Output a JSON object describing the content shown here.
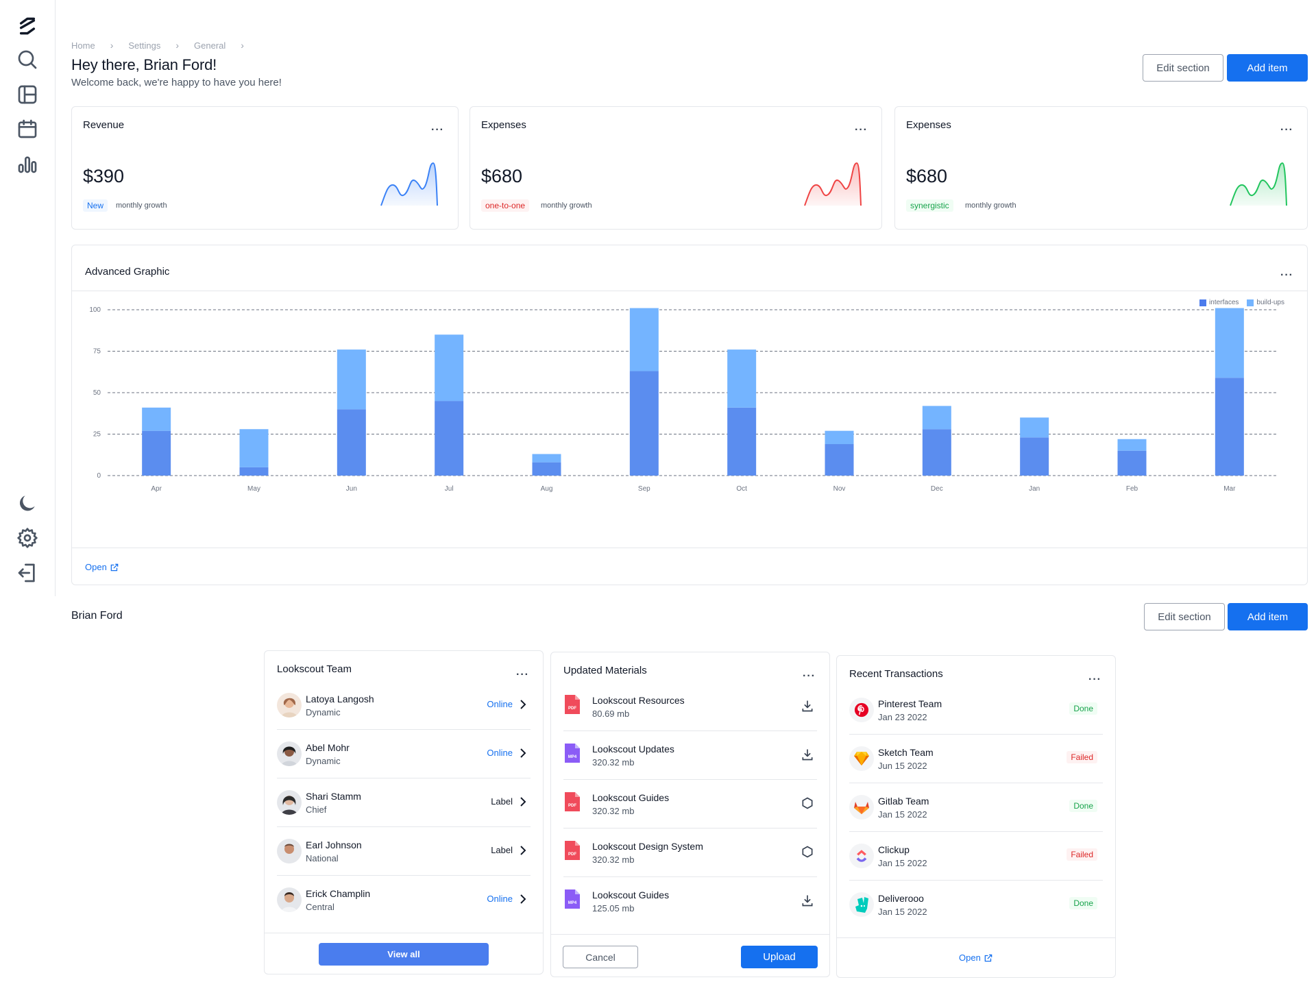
{
  "breadcrumb": [
    "Home",
    "Settings",
    "General"
  ],
  "header": {
    "title": "Hey there, Brian Ford!",
    "subtitle": "Welcome back, we're happy to have you here!",
    "edit_label": "Edit section",
    "add_label": "Add item"
  },
  "stats": [
    {
      "title": "Revenue",
      "value": "$390",
      "badge": "New",
      "badge_color": "#1570ef",
      "badge_bg": "#eff6ff",
      "growth": "monthly growth",
      "spark_color": "#3b82f6"
    },
    {
      "title": "Expenses",
      "value": "$680",
      "badge": "one-to-one",
      "badge_color": "#dc2626",
      "badge_bg": "#fef2f2",
      "growth": "monthly growth",
      "spark_color": "#ef4444"
    },
    {
      "title": "Expenses",
      "value": "$680",
      "badge": "synergistic",
      "badge_color": "#16a34a",
      "badge_bg": "#f0fdf4",
      "growth": "monthly growth",
      "spark_color": "#22c55e"
    }
  ],
  "advanced": {
    "title": "Advanced Graphic",
    "open_label": "Open"
  },
  "chart_data": {
    "type": "bar",
    "stacked": true,
    "categories": [
      "Apr",
      "May",
      "Jun",
      "Jul",
      "Aug",
      "Sep",
      "Oct",
      "Nov",
      "Dec",
      "Jan",
      "Feb",
      "Mar"
    ],
    "series": [
      {
        "name": "interfaces",
        "color": "#5b8def",
        "values": [
          27,
          5,
          40,
          45,
          8,
          63,
          41,
          19,
          28,
          23,
          15,
          59
        ]
      },
      {
        "name": "build-ups",
        "color": "#74b4ff",
        "values": [
          14,
          23,
          36,
          40,
          5,
          38,
          35,
          8,
          14,
          12,
          7,
          42
        ]
      }
    ],
    "yticks": [
      0,
      25,
      50,
      75,
      100
    ],
    "ylim": [
      0,
      100
    ],
    "grid": true,
    "legend_position": "top-right"
  },
  "section2": {
    "title": "Brian Ford",
    "edit_label": "Edit section",
    "add_label": "Add item"
  },
  "team": {
    "title": "Lookscout Team",
    "view_all": "View all",
    "members": [
      {
        "name": "Latoya Langosh",
        "role": "Dynamic",
        "status": "Online",
        "status_color": "#1570ef"
      },
      {
        "name": "Abel Mohr",
        "role": "Dynamic",
        "status": "Online",
        "status_color": "#1570ef"
      },
      {
        "name": "Shari Stamm",
        "role": "Chief",
        "status": "Label",
        "status_color": "#111827"
      },
      {
        "name": "Earl Johnson",
        "role": "National",
        "status": "Label",
        "status_color": "#111827"
      },
      {
        "name": "Erick Champlin",
        "role": "Central",
        "status": "Online",
        "status_color": "#1570ef"
      }
    ]
  },
  "materials": {
    "title": "Updated Materials",
    "cancel": "Cancel",
    "upload": "Upload",
    "files": [
      {
        "name": "Lookscout Resources",
        "size": "80.69 mb",
        "type": "PDF",
        "color": "#f04b5b",
        "action": "download"
      },
      {
        "name": "Lookscout Updates",
        "size": "320.32 mb",
        "type": "MP4",
        "color": "#8b5cf6",
        "action": "download"
      },
      {
        "name": "Lookscout Guides",
        "size": "320.32 mb",
        "type": "PDF",
        "color": "#f04b5b",
        "action": "hexagon"
      },
      {
        "name": "Lookscout Design System",
        "size": "320.32 mb",
        "type": "PDF",
        "color": "#f04b5b",
        "action": "hexagon"
      },
      {
        "name": "Lookscout Guides",
        "size": "125.05 mb",
        "type": "MP4",
        "color": "#8b5cf6",
        "action": "download"
      }
    ]
  },
  "transactions": {
    "title": "Recent Transactions",
    "open_label": "Open",
    "items": [
      {
        "name": "Pinterest Team",
        "date": "Jan 23 2022",
        "status": "Done",
        "status_color": "#16a34a",
        "status_bg": "#f0fdf4",
        "icon": "pinterest-icon"
      },
      {
        "name": "Sketch Team",
        "date": "Jun 15 2022",
        "status": "Failed",
        "status_color": "#dc2626",
        "status_bg": "#fef2f2",
        "icon": "sketch-icon"
      },
      {
        "name": "Gitlab Team",
        "date": "Jan 15 2022",
        "status": "Done",
        "status_color": "#16a34a",
        "status_bg": "#f0fdf4",
        "icon": "gitlab-icon"
      },
      {
        "name": "Clickup",
        "date": "Jan 15 2022",
        "status": "Failed",
        "status_color": "#dc2626",
        "status_bg": "#fef2f2",
        "icon": "clickup-icon"
      },
      {
        "name": "Deliverooo",
        "date": "Jan 15 2022",
        "status": "Done",
        "status_color": "#16a34a",
        "status_bg": "#f0fdf4",
        "icon": "deliveroo-icon"
      }
    ]
  }
}
